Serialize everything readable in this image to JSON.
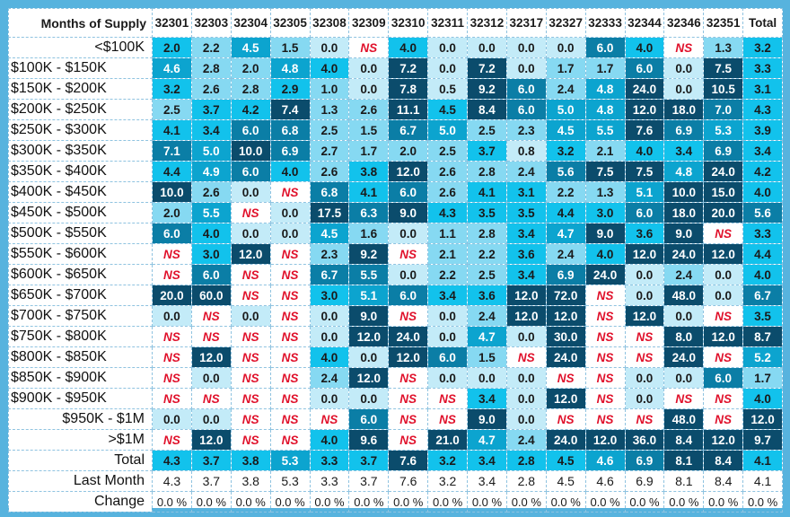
{
  "table": {
    "title": "Months of Supply",
    "columns": [
      "32301",
      "32303",
      "32304",
      "32305",
      "32308",
      "32309",
      "32310",
      "32311",
      "32312",
      "32317",
      "32327",
      "32333",
      "32344",
      "32346",
      "32351",
      "Total"
    ],
    "rows": [
      {
        "label": "<$100K",
        "align": "right",
        "values": [
          "2.0",
          "2.2",
          "4.5",
          "1.5",
          "0.0",
          "NS",
          "4.0",
          "0.0",
          "0.0",
          "0.0",
          "0.0",
          "6.0",
          "4.0",
          "NS",
          "1.3",
          "3.2"
        ],
        "levels": [
          3,
          2,
          4,
          2,
          1,
          0,
          3,
          1,
          1,
          1,
          1,
          5,
          3,
          0,
          2,
          3
        ]
      },
      {
        "label": "$100K - $150K",
        "align": "left",
        "values": [
          "4.6",
          "2.8",
          "2.0",
          "4.8",
          "4.0",
          "0.0",
          "7.2",
          "0.0",
          "7.2",
          "0.0",
          "1.7",
          "1.7",
          "6.0",
          "0.0",
          "7.5",
          "3.3"
        ],
        "levels": [
          4,
          2,
          2,
          4,
          3,
          1,
          6,
          1,
          6,
          1,
          2,
          2,
          5,
          1,
          6,
          3
        ]
      },
      {
        "label": "$150K - $200K",
        "align": "left",
        "values": [
          "3.2",
          "2.6",
          "2.8",
          "2.9",
          "1.0",
          "0.0",
          "7.8",
          "0.5",
          "9.2",
          "6.0",
          "2.4",
          "4.8",
          "24.0",
          "0.0",
          "10.5",
          "3.1"
        ],
        "levels": [
          3,
          2,
          2,
          3,
          2,
          1,
          6,
          1,
          6,
          5,
          2,
          4,
          6,
          1,
          6,
          3
        ]
      },
      {
        "label": "$200K - $250K",
        "align": "left",
        "values": [
          "2.5",
          "3.7",
          "4.2",
          "7.4",
          "1.3",
          "2.6",
          "11.1",
          "4.5",
          "8.4",
          "6.0",
          "5.0",
          "4.8",
          "12.0",
          "18.0",
          "7.0",
          "4.3"
        ],
        "levels": [
          2,
          3,
          3,
          6,
          2,
          2,
          6,
          3,
          6,
          5,
          4,
          4,
          6,
          6,
          5,
          3
        ]
      },
      {
        "label": "$250K - $300K",
        "align": "left",
        "values": [
          "4.1",
          "3.4",
          "6.0",
          "6.8",
          "2.5",
          "1.5",
          "6.7",
          "5.0",
          "2.5",
          "2.3",
          "4.5",
          "5.5",
          "7.6",
          "6.9",
          "5.3",
          "3.9"
        ],
        "levels": [
          3,
          3,
          5,
          5,
          2,
          2,
          5,
          4,
          2,
          2,
          4,
          4,
          6,
          5,
          4,
          3
        ]
      },
      {
        "label": "$300K - $350K",
        "align": "left",
        "values": [
          "7.1",
          "5.0",
          "10.0",
          "6.9",
          "2.7",
          "1.7",
          "2.0",
          "2.5",
          "3.7",
          "0.8",
          "3.2",
          "2.1",
          "4.0",
          "3.4",
          "6.9",
          "3.4"
        ],
        "levels": [
          5,
          4,
          6,
          5,
          2,
          2,
          2,
          2,
          3,
          1,
          3,
          2,
          3,
          3,
          5,
          3
        ]
      },
      {
        "label": "$350K - $400K",
        "align": "left",
        "values": [
          "4.4",
          "4.9",
          "6.0",
          "4.0",
          "2.6",
          "3.8",
          "12.0",
          "2.6",
          "2.8",
          "2.4",
          "5.6",
          "7.5",
          "7.5",
          "4.8",
          "24.0",
          "4.2"
        ],
        "levels": [
          3,
          4,
          5,
          3,
          2,
          3,
          6,
          2,
          2,
          2,
          5,
          6,
          6,
          4,
          6,
          3
        ]
      },
      {
        "label": "$400K - $450K",
        "align": "left",
        "values": [
          "10.0",
          "2.6",
          "0.0",
          "NS",
          "6.8",
          "4.1",
          "6.0",
          "2.6",
          "4.1",
          "3.1",
          "2.2",
          "1.3",
          "5.1",
          "10.0",
          "15.0",
          "4.0"
        ],
        "levels": [
          6,
          2,
          1,
          0,
          5,
          3,
          5,
          2,
          3,
          3,
          2,
          2,
          4,
          6,
          6,
          3
        ]
      },
      {
        "label": "$450K - $500K",
        "align": "left",
        "values": [
          "2.0",
          "5.5",
          "NS",
          "0.0",
          "17.5",
          "6.3",
          "9.0",
          "4.3",
          "3.5",
          "3.5",
          "4.4",
          "3.0",
          "6.0",
          "18.0",
          "20.0",
          "5.6"
        ],
        "levels": [
          2,
          4,
          0,
          1,
          6,
          5,
          6,
          3,
          3,
          3,
          3,
          3,
          5,
          6,
          6,
          5
        ]
      },
      {
        "label": "$500K - $550K",
        "align": "left",
        "values": [
          "6.0",
          "4.0",
          "0.0",
          "0.0",
          "4.5",
          "1.6",
          "0.0",
          "1.1",
          "2.8",
          "3.4",
          "4.7",
          "9.0",
          "3.6",
          "9.0",
          "NS",
          "3.3"
        ],
        "levels": [
          5,
          3,
          1,
          1,
          4,
          2,
          1,
          2,
          2,
          3,
          4,
          6,
          3,
          6,
          0,
          3
        ]
      },
      {
        "label": "$550K - $600K",
        "align": "left",
        "values": [
          "NS",
          "3.0",
          "12.0",
          "NS",
          "2.3",
          "9.2",
          "NS",
          "2.1",
          "2.2",
          "3.6",
          "2.4",
          "4.0",
          "12.0",
          "24.0",
          "12.0",
          "4.4"
        ],
        "levels": [
          0,
          3,
          6,
          0,
          2,
          6,
          0,
          2,
          2,
          3,
          2,
          3,
          6,
          6,
          6,
          3
        ]
      },
      {
        "label": "$600K - $650K",
        "align": "left",
        "values": [
          "NS",
          "6.0",
          "NS",
          "NS",
          "6.7",
          "5.5",
          "0.0",
          "2.2",
          "2.5",
          "3.4",
          "6.9",
          "24.0",
          "0.0",
          "2.4",
          "0.0",
          "4.0"
        ],
        "levels": [
          0,
          5,
          0,
          0,
          5,
          5,
          1,
          2,
          2,
          3,
          5,
          6,
          1,
          2,
          1,
          3
        ]
      },
      {
        "label": "$650K - $700K",
        "align": "left",
        "values": [
          "20.0",
          "60.0",
          "NS",
          "NS",
          "3.0",
          "5.1",
          "6.0",
          "3.4",
          "3.6",
          "12.0",
          "72.0",
          "NS",
          "0.0",
          "48.0",
          "0.0",
          "6.7"
        ],
        "levels": [
          6,
          6,
          0,
          0,
          3,
          4,
          5,
          3,
          3,
          6,
          6,
          0,
          1,
          6,
          1,
          5
        ]
      },
      {
        "label": "$700K - $750K",
        "align": "left",
        "values": [
          "0.0",
          "NS",
          "0.0",
          "NS",
          "0.0",
          "9.0",
          "NS",
          "0.0",
          "2.4",
          "12.0",
          "12.0",
          "NS",
          "12.0",
          "0.0",
          "NS",
          "3.5"
        ],
        "levels": [
          1,
          0,
          1,
          0,
          1,
          6,
          0,
          1,
          2,
          6,
          6,
          0,
          6,
          1,
          0,
          3
        ]
      },
      {
        "label": "$750K - $800K",
        "align": "left",
        "values": [
          "NS",
          "NS",
          "NS",
          "NS",
          "0.0",
          "12.0",
          "24.0",
          "0.0",
          "4.7",
          "0.0",
          "30.0",
          "NS",
          "NS",
          "8.0",
          "12.0",
          "8.7"
        ],
        "levels": [
          0,
          0,
          0,
          0,
          1,
          6,
          6,
          1,
          4,
          1,
          6,
          0,
          0,
          6,
          6,
          6
        ]
      },
      {
        "label": "$800K - $850K",
        "align": "left",
        "values": [
          "NS",
          "12.0",
          "NS",
          "NS",
          "4.0",
          "0.0",
          "12.0",
          "6.0",
          "1.5",
          "NS",
          "24.0",
          "NS",
          "NS",
          "24.0",
          "NS",
          "5.2"
        ],
        "levels": [
          0,
          6,
          0,
          0,
          3,
          1,
          6,
          5,
          2,
          0,
          6,
          0,
          0,
          6,
          0,
          4
        ]
      },
      {
        "label": "$850K - $900K",
        "align": "left",
        "values": [
          "NS",
          "0.0",
          "NS",
          "NS",
          "2.4",
          "12.0",
          "NS",
          "0.0",
          "0.0",
          "0.0",
          "NS",
          "NS",
          "0.0",
          "0.0",
          "6.0",
          "1.7"
        ],
        "levels": [
          0,
          1,
          0,
          0,
          2,
          6,
          0,
          1,
          1,
          1,
          0,
          0,
          1,
          1,
          5,
          2
        ]
      },
      {
        "label": "$900K - $950K",
        "align": "left",
        "values": [
          "NS",
          "NS",
          "NS",
          "NS",
          "0.0",
          "0.0",
          "NS",
          "NS",
          "3.4",
          "0.0",
          "12.0",
          "NS",
          "0.0",
          "NS",
          "NS",
          "4.0"
        ],
        "levels": [
          0,
          0,
          0,
          0,
          1,
          1,
          0,
          0,
          3,
          1,
          6,
          0,
          1,
          0,
          0,
          3
        ]
      },
      {
        "label": "$950K - $1M",
        "align": "right",
        "values": [
          "0.0",
          "0.0",
          "NS",
          "NS",
          "NS",
          "6.0",
          "NS",
          "NS",
          "9.0",
          "0.0",
          "NS",
          "NS",
          "NS",
          "48.0",
          "NS",
          "12.0"
        ],
        "levels": [
          1,
          1,
          0,
          0,
          0,
          5,
          0,
          0,
          6,
          1,
          0,
          0,
          0,
          6,
          0,
          6
        ]
      },
      {
        "label": ">$1M",
        "align": "right",
        "values": [
          "NS",
          "12.0",
          "NS",
          "NS",
          "4.0",
          "9.6",
          "NS",
          "21.0",
          "4.7",
          "2.4",
          "24.0",
          "12.0",
          "36.0",
          "8.4",
          "12.0",
          "9.7"
        ],
        "levels": [
          0,
          6,
          0,
          0,
          3,
          6,
          0,
          6,
          4,
          2,
          6,
          6,
          6,
          6,
          6,
          6
        ]
      }
    ],
    "total_row": {
      "label": "Total",
      "values": [
        "4.3",
        "3.7",
        "3.8",
        "5.3",
        "3.3",
        "3.7",
        "7.6",
        "3.2",
        "3.4",
        "2.8",
        "4.5",
        "4.6",
        "6.9",
        "8.1",
        "8.4",
        "4.1"
      ],
      "levels": [
        3,
        3,
        3,
        4,
        3,
        3,
        6,
        3,
        3,
        3,
        3,
        4,
        5,
        6,
        6,
        3
      ]
    },
    "last_month_row": {
      "label": "Last Month",
      "values": [
        "4.3",
        "3.7",
        "3.8",
        "5.3",
        "3.3",
        "3.7",
        "7.6",
        "3.2",
        "3.4",
        "2.8",
        "4.5",
        "4.6",
        "6.9",
        "8.1",
        "8.4",
        "4.1"
      ]
    },
    "change_row": {
      "label": "Change",
      "values": [
        "0.0 %",
        "0.0 %",
        "0.0 %",
        "0.0 %",
        "0.0 %",
        "0.0 %",
        "0.0 %",
        "0.0 %",
        "0.0 %",
        "0.0 %",
        "0.0 %",
        "0.0 %",
        "0.0 %",
        "0.0 %",
        "0.0 %",
        "0.0 %"
      ]
    },
    "colors": {
      "background": "#57b3de",
      "level_1": "#c3ebf8",
      "level_2": "#86d9f2",
      "level_3": "#12c2ec",
      "level_4": "#0ca4cf",
      "level_5": "#0b7ea6",
      "level_6": "#0b4c6c",
      "ns_text": "#e0102a"
    }
  }
}
